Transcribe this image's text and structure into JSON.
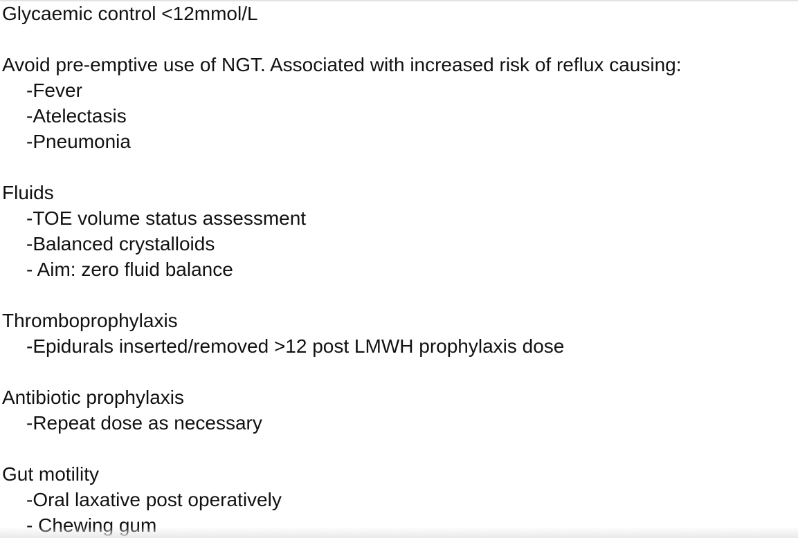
{
  "sections": [
    {
      "heading": "Glycaemic control <12mmol/L",
      "items": []
    },
    {
      "heading": "Avoid pre-emptive use of NGT. Associated with increased risk of reflux causing:",
      "items": [
        "-Fever",
        "-Atelectasis",
        "-Pneumonia"
      ]
    },
    {
      "heading": "Fluids",
      "items": [
        "-TOE volume status assessment",
        "-Balanced crystalloids",
        "- Aim: zero fluid balance"
      ]
    },
    {
      "heading": "Thromboprophylaxis",
      "items": [
        "-Epidurals inserted/removed >12 post LMWH prophylaxis dose"
      ]
    },
    {
      "heading": "Antibiotic prophylaxis",
      "items": [
        "-Repeat dose as necessary"
      ]
    },
    {
      "heading": "Gut motility",
      "items": [
        "-Oral laxative post operatively",
        "- Chewing gum"
      ]
    }
  ]
}
